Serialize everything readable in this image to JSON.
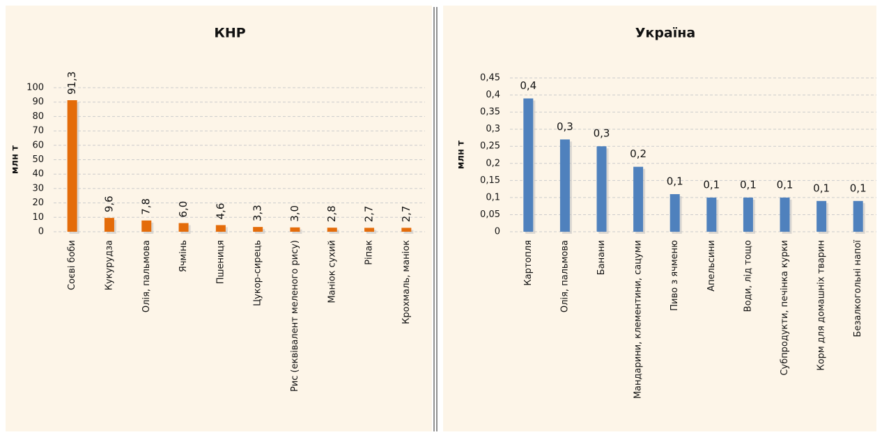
{
  "chart_data": [
    {
      "type": "bar",
      "title": "КНР",
      "y_label": "млн т",
      "color": "#e46c0a",
      "categories": [
        "Соєві боби",
        "Кукурудза",
        "Олія, пальмова",
        "Ячмінь",
        "Пшениця",
        "Цукор-сирець",
        "Рис (еквівалент меленого рису)",
        "Маніок сухий",
        "Ріпак",
        "Крохмаль, маніок"
      ],
      "values": [
        91.3,
        9.6,
        7.8,
        6.0,
        4.6,
        3.3,
        3.0,
        2.8,
        2.7,
        2.7
      ],
      "value_labels": [
        "91,3",
        "9,6",
        "7,8",
        "6,0",
        "4,6",
        "3,3",
        "3,0",
        "2,8",
        "2,7",
        "2,7"
      ],
      "ylim": [
        0,
        100
      ],
      "yticks": [
        0,
        10,
        20,
        30,
        40,
        50,
        60,
        70,
        80,
        90,
        100
      ],
      "grid": true
    },
    {
      "type": "bar",
      "title": "Україна",
      "y_label": "млн т",
      "color": "#4f81bd",
      "categories": [
        "Картопля",
        "Олія, пальмова",
        "Банани",
        "Мандарини, клементини, сацуми",
        "Пиво з ячменю",
        "Апельсини",
        "Води, лід тощо",
        "Субпродукти, печінка курки",
        "Корм для домашніх тварин",
        "Безалкогольні напої"
      ],
      "values": [
        0.39,
        0.27,
        0.25,
        0.19,
        0.11,
        0.1,
        0.1,
        0.1,
        0.09,
        0.09
      ],
      "value_labels": [
        "0,4",
        "0,3",
        "0,3",
        "0,2",
        "0,1",
        "0,1",
        "0,1",
        "0,1",
        "0,1",
        "0,1"
      ],
      "ylim": [
        0,
        0.45
      ],
      "yticks": [
        0,
        {
          "value": 0.05,
          "label": "0,05"
        },
        {
          "value": 0.1,
          "label": "0,1"
        },
        {
          "value": 0.15,
          "label": "0,15"
        },
        {
          "value": 0.2,
          "label": "0,2"
        },
        {
          "value": 0.25,
          "label": "0,25"
        },
        {
          "value": 0.3,
          "label": "0,3"
        },
        {
          "value": 0.35,
          "label": "0,35"
        },
        {
          "value": 0.4,
          "label": "0,4"
        },
        {
          "value": 0.45,
          "label": "0,45"
        }
      ],
      "grid": true
    }
  ]
}
